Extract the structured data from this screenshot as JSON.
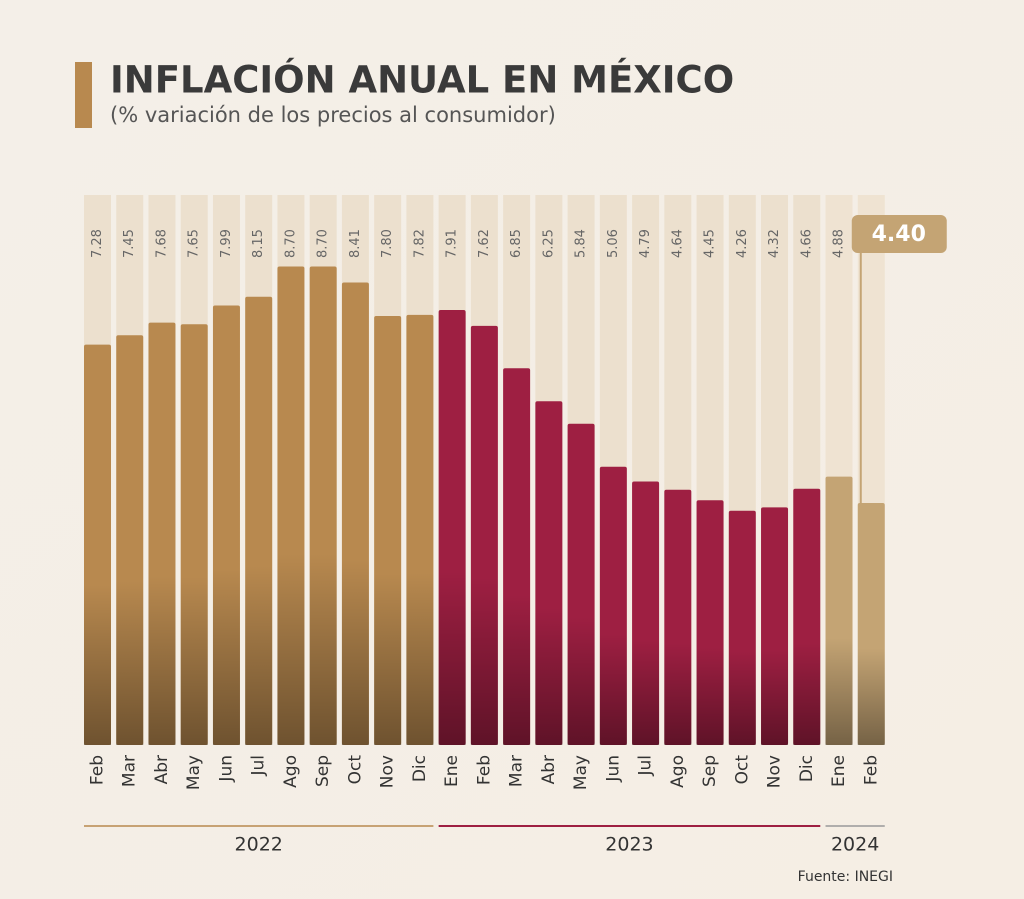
{
  "chart_data": {
    "type": "bar",
    "title": "INFLACIÓN ANUAL EN MÉXICO",
    "subtitle": "(% variación de los precios al consumidor)",
    "source": "Fuente: INEGI",
    "ylim": [
      0,
      10
    ],
    "series": [
      {
        "name": "2022",
        "color": "#b8894f",
        "categories": [
          "Feb",
          "Mar",
          "Abr",
          "May",
          "Jun",
          "Jul",
          "Ago",
          "Sep",
          "Oct",
          "Nov",
          "Dic"
        ],
        "values": [
          7.28,
          7.45,
          7.68,
          7.65,
          7.99,
          8.15,
          8.7,
          8.7,
          8.41,
          7.8,
          7.82
        ],
        "value_labels": [
          "7.28",
          "7.45",
          "7.68",
          "7.65",
          "7.99",
          "8.15",
          "8.70",
          "8.70",
          "8.41",
          "7.80",
          "7.82"
        ]
      },
      {
        "name": "2023",
        "color": "#9e1f42",
        "categories": [
          "Ene",
          "Feb",
          "Mar",
          "Abr",
          "May",
          "Jun",
          "Jul",
          "Ago",
          "Sep",
          "Oct",
          "Nov",
          "Dic"
        ],
        "values": [
          7.91,
          7.62,
          6.85,
          6.25,
          5.84,
          5.06,
          4.79,
          4.64,
          4.45,
          4.26,
          4.32,
          4.66
        ],
        "value_labels": [
          "7.91",
          "7.62",
          "6.85",
          "6.25",
          "5.84",
          "5.06",
          "4.79",
          "4.64",
          "4.45",
          "4.26",
          "4.32",
          "4.66"
        ]
      },
      {
        "name": "2024",
        "color": "#c4a474",
        "categories": [
          "Ene",
          "Feb"
        ],
        "values": [
          4.88,
          4.4
        ],
        "value_labels": [
          "4.88",
          "4.40"
        ]
      }
    ]
  }
}
